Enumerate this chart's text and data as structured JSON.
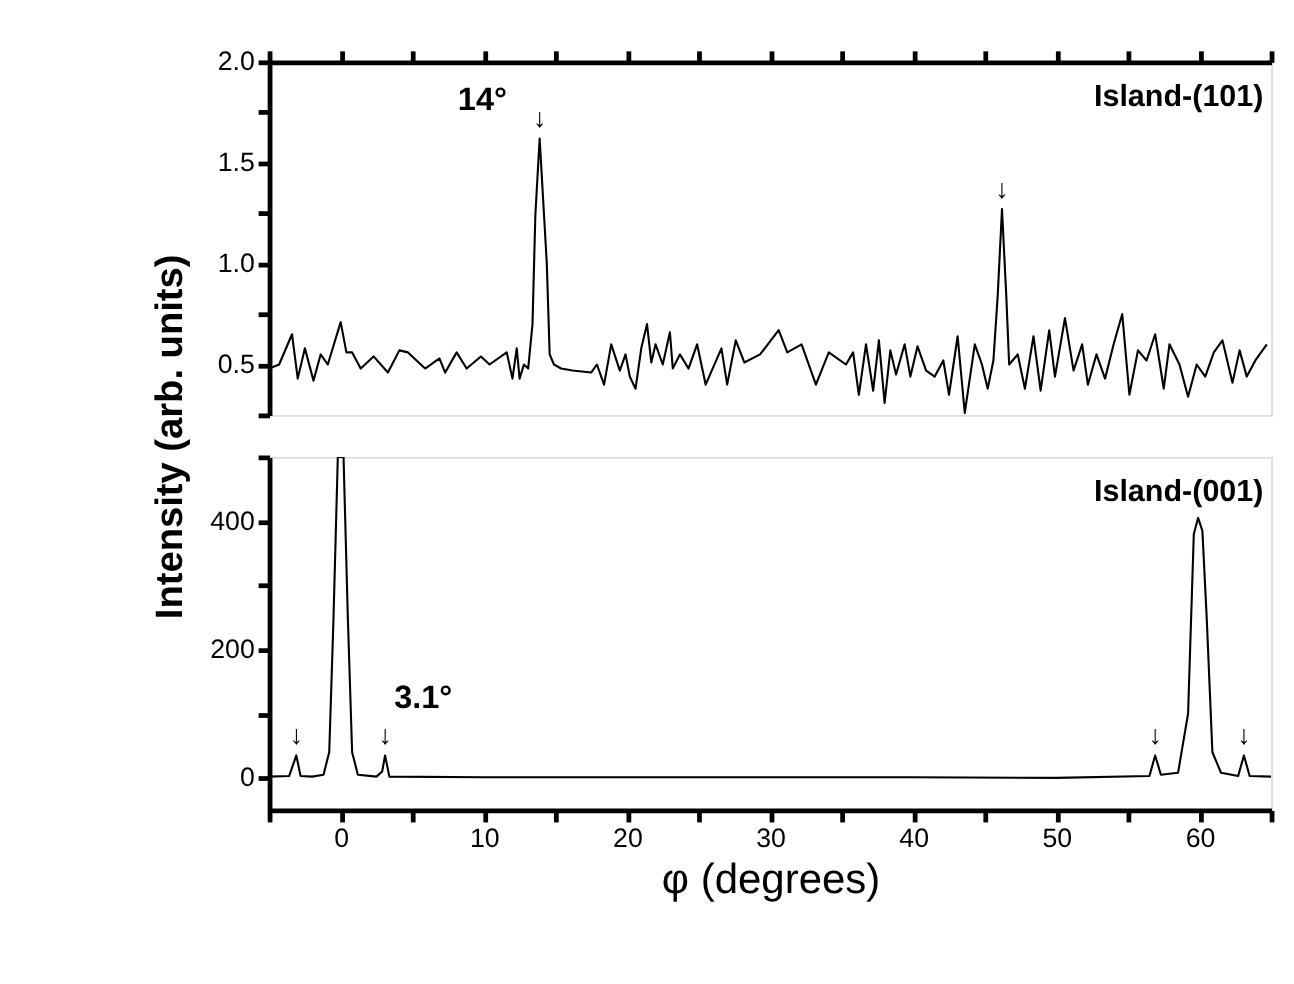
{
  "chart_data": [
    {
      "type": "line",
      "ylabel": "Intensity (arb. units)",
      "xlim": [
        -5,
        65
      ],
      "ylim": [
        0.25,
        2.0
      ],
      "xticks": [
        {
          "value": -5,
          "label": null
        },
        0,
        {
          "value": 5,
          "label": null
        },
        10,
        {
          "value": 15,
          "label": null
        },
        20,
        {
          "value": 25,
          "label": null
        },
        30,
        {
          "value": 35,
          "label": null
        },
        40,
        {
          "value": 45,
          "label": null
        },
        50,
        {
          "value": 55,
          "label": null
        },
        60,
        {
          "value": 65,
          "label": null
        }
      ],
      "yticks": [
        {
          "value": 0.25,
          "label": null
        },
        0.5,
        {
          "value": 0.75,
          "label": null
        },
        {
          "value": 1.0,
          "label": "1.0"
        },
        {
          "value": 1.25,
          "label": null
        },
        1.5,
        {
          "value": 1.75,
          "label": null
        },
        {
          "value": 2.0,
          "label": "2.0"
        }
      ],
      "tick_labels": "y",
      "grid": false,
      "series": [
        {
          "color": "#000000",
          "x": [
            -5,
            -4.3,
            -3.4,
            -3.0,
            -2.5,
            -1.9,
            -1.4,
            -0.9,
            0,
            0.4,
            0.8,
            1.4,
            2.3,
            3.3,
            4.1,
            4.7,
            5.9,
            6.9,
            7.3,
            8.1,
            8.8,
            9.8,
            10.4,
            11.6,
            12.0,
            12.3,
            12.5,
            12.8,
            13.1,
            13.4,
            13.6,
            13.9,
            14.4,
            14.6,
            14.9,
            15.4,
            16.2,
            17.5,
            17.9,
            18.4,
            18.9,
            19.5,
            19.9,
            20.2,
            20.6,
            21.0,
            21.4,
            21.7,
            22.0,
            22.5,
            23.0,
            23.2,
            23.7,
            24.3,
            24.9,
            25.5,
            26.6,
            27.0,
            27.6,
            28.2,
            29.3,
            30.6,
            31.2,
            32.2,
            33.2,
            34.1,
            35.3,
            35.8,
            36.2,
            36.7,
            37.2,
            37.6,
            38.0,
            38.4,
            38.8,
            39.4,
            39.8,
            40.3,
            40.9,
            41.5,
            42.1,
            42.5,
            43.1,
            43.6,
            44.3,
            44.8,
            45.2,
            45.6,
            45.9,
            46.2,
            46.5,
            46.7,
            47.3,
            47.8,
            48.4,
            48.9,
            49.5,
            49.9,
            50.6,
            51.2,
            51.8,
            52.2,
            52.8,
            53.4,
            54.0,
            54.6,
            55.1,
            55.7,
            56.3,
            56.9,
            57.5,
            57.9,
            58.6,
            59.2,
            59.8,
            60.4,
            61.0,
            61.6,
            62.3,
            62.8,
            63.3,
            63.9,
            64.7
          ],
          "values": [
            0.48,
            0.5,
            0.65,
            0.43,
            0.58,
            0.42,
            0.55,
            0.5,
            0.71,
            0.56,
            0.56,
            0.48,
            0.54,
            0.46,
            0.57,
            0.56,
            0.48,
            0.53,
            0.46,
            0.56,
            0.48,
            0.54,
            0.5,
            0.56,
            0.43,
            0.58,
            0.43,
            0.5,
            0.48,
            0.7,
            1.24,
            1.62,
            1.0,
            0.55,
            0.5,
            0.48,
            0.47,
            0.46,
            0.5,
            0.4,
            0.6,
            0.47,
            0.55,
            0.44,
            0.38,
            0.58,
            0.7,
            0.51,
            0.6,
            0.5,
            0.66,
            0.48,
            0.55,
            0.48,
            0.6,
            0.4,
            0.58,
            0.4,
            0.62,
            0.51,
            0.55,
            0.67,
            0.56,
            0.6,
            0.4,
            0.56,
            0.5,
            0.56,
            0.35,
            0.6,
            0.37,
            0.62,
            0.31,
            0.57,
            0.45,
            0.6,
            0.44,
            0.59,
            0.47,
            0.44,
            0.52,
            0.35,
            0.64,
            0.26,
            0.6,
            0.5,
            0.38,
            0.52,
            0.84,
            1.27,
            0.84,
            0.5,
            0.55,
            0.38,
            0.64,
            0.37,
            0.67,
            0.44,
            0.73,
            0.47,
            0.6,
            0.4,
            0.55,
            0.43,
            0.6,
            0.75,
            0.35,
            0.57,
            0.52,
            0.65,
            0.38,
            0.6,
            0.5,
            0.34,
            0.5,
            0.44,
            0.56,
            0.62,
            0.41,
            0.57,
            0.44,
            0.52,
            0.6
          ]
        }
      ],
      "annotations": [
        "Island-(101)",
        {
          "text": "↓",
          "x": 13.9,
          "y": 1.62
        },
        {
          "text": "14°",
          "x": 13.9,
          "y": 1.62
        },
        {
          "text": "↓",
          "x": 46.2,
          "y": 1.27
        }
      ]
    },
    {
      "type": "line",
      "xlabel": "φ (degrees)",
      "xlim": [
        -5,
        65
      ],
      "ylim": [
        -50,
        500
      ],
      "xticks": [
        {
          "value": -5,
          "label": null
        },
        0,
        {
          "value": 5,
          "label": null
        },
        10,
        {
          "value": 15,
          "label": null
        },
        20,
        {
          "value": 25,
          "label": null
        },
        30,
        {
          "value": 35,
          "label": null
        },
        40,
        {
          "value": 45,
          "label": null
        },
        50,
        {
          "value": 55,
          "label": null
        },
        60,
        {
          "value": 65,
          "label": null
        }
      ],
      "yticks": [
        0,
        {
          "value": 100,
          "label": null
        },
        200,
        {
          "value": 300,
          "label": null
        },
        400,
        {
          "value": 500,
          "label": null
        }
      ],
      "grid": false,
      "series": [
        {
          "color": "#000000",
          "x": [
            -5,
            -3.6,
            -3.1,
            -2.8,
            -2,
            -1.2,
            -0.8,
            -0.5,
            -0.2,
            0.2,
            0.5,
            0.8,
            1.2,
            2.5,
            2.9,
            3.1,
            3.4,
            10,
            20,
            30,
            40,
            50,
            56.5,
            56.9,
            57.3,
            58.5,
            59.2,
            59.6,
            59.9,
            60.2,
            60.5,
            60.9,
            61.5,
            62.7,
            63.1,
            63.5,
            65
          ],
          "values": [
            2,
            3,
            35,
            3,
            2,
            5,
            40,
            250,
            500,
            500,
            250,
            40,
            5,
            2,
            10,
            35,
            2,
            1,
            1,
            1,
            1,
            0,
            3,
            35,
            5,
            8,
            100,
            380,
            405,
            385,
            250,
            40,
            8,
            3,
            35,
            3,
            2
          ]
        }
      ],
      "annotations": [
        "Island-(001)",
        {
          "text": "↓",
          "x": -3.1,
          "y": 35
        },
        {
          "text": "↓",
          "x": 3.1,
          "y": 35
        },
        {
          "text": "3.1°",
          "x": 3.1,
          "y": 35
        },
        {
          "text": "↓",
          "x": 56.9,
          "y": 35
        },
        {
          "text": "↓",
          "x": 63.1,
          "y": 35
        }
      ]
    }
  ]
}
